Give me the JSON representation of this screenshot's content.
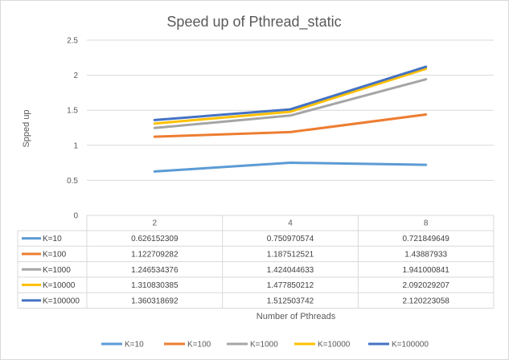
{
  "chart_data": {
    "type": "line",
    "title": "Speed up of Pthread_static",
    "xlabel": "Number  of  Pthreads",
    "ylabel": "Spped up",
    "categories": [
      "2",
      "4",
      "8"
    ],
    "ylim": [
      0,
      2.5
    ],
    "yticks": [
      "0",
      "0.5",
      "1",
      "1.5",
      "2",
      "2.5"
    ],
    "grid": true,
    "legend_position": "bottom",
    "data_table": true,
    "series": [
      {
        "name": "K=10",
        "color": "#5B9BD5",
        "values": [
          0.626152309,
          0.750970574,
          0.721849649
        ],
        "labels": [
          "0.626152309",
          "0.750970574",
          "0.721849649"
        ]
      },
      {
        "name": "K=100",
        "color": "#ED7D31",
        "values": [
          1.122709282,
          1.187512521,
          1.43887933
        ],
        "labels": [
          "1.122709282",
          "1.187512521",
          "1.43887933"
        ]
      },
      {
        "name": "K=1000",
        "color": "#A5A5A5",
        "values": [
          1.246534376,
          1.424044633,
          1.941000841
        ],
        "labels": [
          "1.246534376",
          "1.424044633",
          "1.941000841"
        ]
      },
      {
        "name": "K=10000",
        "color": "#FFC000",
        "values": [
          1.310830385,
          1.477850212,
          2.092029207
        ],
        "labels": [
          "1.310830385",
          "1.477850212",
          "2.092029207"
        ]
      },
      {
        "name": "K=100000",
        "color": "#4472C4",
        "values": [
          1.360318692,
          1.512503742,
          2.120223058
        ],
        "labels": [
          "1.360318692",
          "1.512503742",
          "2.120223058"
        ]
      }
    ]
  }
}
